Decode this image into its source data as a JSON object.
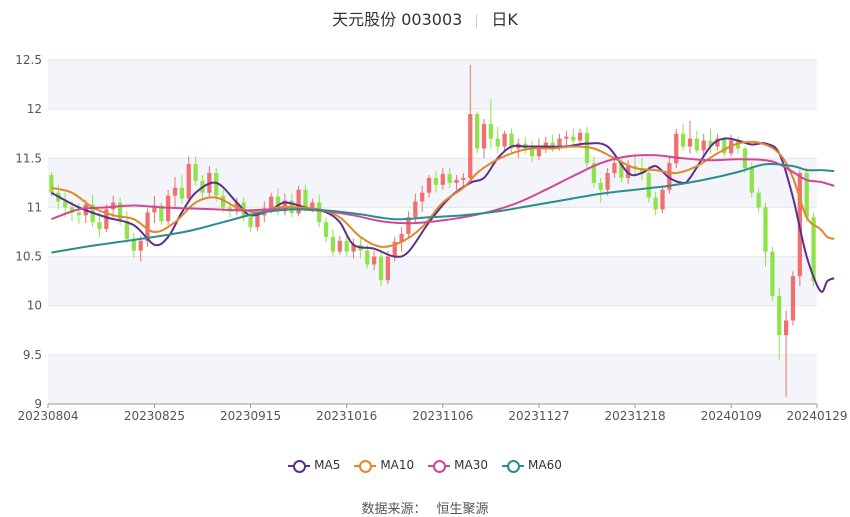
{
  "header": {
    "stock": "天元股份 003003",
    "period": "日K"
  },
  "source": {
    "label": "数据来源：",
    "name": "恒生聚源"
  },
  "colors": {
    "up": "#f06f6f",
    "down": "#8fe34a",
    "grid": "#e5e5e5",
    "band": "#f4f5fa"
  },
  "chart_data": {
    "type": "candlestick",
    "ylim": [
      9,
      12.5
    ],
    "yticks": [
      9,
      9.5,
      10,
      10.5,
      11,
      11.5,
      12,
      12.5
    ],
    "xtick_labels": [
      "20230804",
      "20230825",
      "20230915",
      "20231016",
      "20231106",
      "20231127",
      "20231218",
      "20240109",
      "20240129"
    ],
    "xtick_positions": [
      0,
      15,
      29,
      43,
      57,
      71,
      85,
      99,
      112
    ],
    "candles_ohlc": [
      [
        11.33,
        11.36,
        11.11,
        11.15
      ],
      [
        11.15,
        11.23,
        10.98,
        11.06
      ],
      [
        11.06,
        11.15,
        10.9,
        11.0
      ],
      [
        11.0,
        11.06,
        10.86,
        10.95
      ],
      [
        10.95,
        11.04,
        10.83,
        10.92
      ],
      [
        10.92,
        11.08,
        10.84,
        11.03
      ],
      [
        11.03,
        11.13,
        10.8,
        10.85
      ],
      [
        10.85,
        10.95,
        10.7,
        10.78
      ],
      [
        10.78,
        11.03,
        10.75,
        10.98
      ],
      [
        10.98,
        11.12,
        10.9,
        11.05
      ],
      [
        11.05,
        11.1,
        10.82,
        10.86
      ],
      [
        10.86,
        10.96,
        10.64,
        10.68
      ],
      [
        10.68,
        10.74,
        10.49,
        10.56
      ],
      [
        10.56,
        10.71,
        10.45,
        10.66
      ],
      [
        10.66,
        10.99,
        10.6,
        10.95
      ],
      [
        10.95,
        11.12,
        10.84,
        11.02
      ],
      [
        11.02,
        11.05,
        10.82,
        10.86
      ],
      [
        10.86,
        11.18,
        10.82,
        11.12
      ],
      [
        11.12,
        11.31,
        11.0,
        11.2
      ],
      [
        11.2,
        11.33,
        11.04,
        11.09
      ],
      [
        11.09,
        11.52,
        11.05,
        11.44
      ],
      [
        11.44,
        11.52,
        11.22,
        11.27
      ],
      [
        11.27,
        11.33,
        11.07,
        11.15
      ],
      [
        11.15,
        11.42,
        11.1,
        11.35
      ],
      [
        11.35,
        11.4,
        11.06,
        11.12
      ],
      [
        11.12,
        11.18,
        10.95,
        11.0
      ],
      [
        11.0,
        11.06,
        10.9,
        10.96
      ],
      [
        10.96,
        11.1,
        10.92,
        11.05
      ],
      [
        11.05,
        11.1,
        10.86,
        10.9
      ],
      [
        10.9,
        10.95,
        10.75,
        10.8
      ],
      [
        10.8,
        10.94,
        10.76,
        10.92
      ],
      [
        10.92,
        11.06,
        10.85,
        10.99
      ],
      [
        10.99,
        11.15,
        10.94,
        11.11
      ],
      [
        11.11,
        11.2,
        10.92,
        10.96
      ],
      [
        10.96,
        11.14,
        10.92,
        11.07
      ],
      [
        11.07,
        11.14,
        10.9,
        10.94
      ],
      [
        10.94,
        11.22,
        10.91,
        11.18
      ],
      [
        11.18,
        11.23,
        10.96,
        11.0
      ],
      [
        11.0,
        11.09,
        10.95,
        11.05
      ],
      [
        11.05,
        11.13,
        10.8,
        10.85
      ],
      [
        10.85,
        10.9,
        10.65,
        10.7
      ],
      [
        10.7,
        10.78,
        10.5,
        10.55
      ],
      [
        10.55,
        10.71,
        10.52,
        10.66
      ],
      [
        10.66,
        10.72,
        10.5,
        10.55
      ],
      [
        10.55,
        10.68,
        10.48,
        10.62
      ],
      [
        10.62,
        10.7,
        10.48,
        10.56
      ],
      [
        10.56,
        10.62,
        10.38,
        10.42
      ],
      [
        10.42,
        10.56,
        10.36,
        10.5
      ],
      [
        10.5,
        10.54,
        10.2,
        10.26
      ],
      [
        10.26,
        10.56,
        10.22,
        10.5
      ],
      [
        10.5,
        10.7,
        10.45,
        10.65
      ],
      [
        10.65,
        10.8,
        10.55,
        10.73
      ],
      [
        10.73,
        10.96,
        10.7,
        10.9
      ],
      [
        10.9,
        11.14,
        10.85,
        11.06
      ],
      [
        11.06,
        11.22,
        10.95,
        11.15
      ],
      [
        11.15,
        11.33,
        11.1,
        11.3
      ],
      [
        11.3,
        11.37,
        11.15,
        11.23
      ],
      [
        11.23,
        11.4,
        11.18,
        11.34
      ],
      [
        11.34,
        11.4,
        11.2,
        11.25
      ],
      [
        11.25,
        11.33,
        11.18,
        11.28
      ],
      [
        11.28,
        11.35,
        11.22,
        11.3
      ],
      [
        11.3,
        12.45,
        11.28,
        11.95
      ],
      [
        11.95,
        11.98,
        11.55,
        11.6
      ],
      [
        11.6,
        11.9,
        11.5,
        11.85
      ],
      [
        11.85,
        12.1,
        11.6,
        11.7
      ],
      [
        11.7,
        11.82,
        11.55,
        11.62
      ],
      [
        11.62,
        11.78,
        11.58,
        11.75
      ],
      [
        11.75,
        11.8,
        11.55,
        11.6
      ],
      [
        11.6,
        11.7,
        11.5,
        11.65
      ],
      [
        11.65,
        11.72,
        11.55,
        11.6
      ],
      [
        11.6,
        11.68,
        11.46,
        11.52
      ],
      [
        11.52,
        11.7,
        11.48,
        11.62
      ],
      [
        11.62,
        11.72,
        11.55,
        11.66
      ],
      [
        11.66,
        11.74,
        11.56,
        11.6
      ],
      [
        11.6,
        11.75,
        11.58,
        11.7
      ],
      [
        11.7,
        11.78,
        11.6,
        11.72
      ],
      [
        11.72,
        11.8,
        11.62,
        11.68
      ],
      [
        11.68,
        11.8,
        11.62,
        11.76
      ],
      [
        11.76,
        11.82,
        11.4,
        11.45
      ],
      [
        11.45,
        11.52,
        11.2,
        11.25
      ],
      [
        11.25,
        11.3,
        11.05,
        11.18
      ],
      [
        11.18,
        11.4,
        11.12,
        11.35
      ],
      [
        11.35,
        11.52,
        11.3,
        11.45
      ],
      [
        11.45,
        11.5,
        11.25,
        11.3
      ],
      [
        11.3,
        11.48,
        11.24,
        11.42
      ],
      [
        11.42,
        11.55,
        11.32,
        11.4
      ],
      [
        11.4,
        11.5,
        11.28,
        11.35
      ],
      [
        11.35,
        11.42,
        11.05,
        11.1
      ],
      [
        11.1,
        11.16,
        10.92,
        10.98
      ],
      [
        10.98,
        11.22,
        10.94,
        11.18
      ],
      [
        11.18,
        11.52,
        11.14,
        11.45
      ],
      [
        11.45,
        11.8,
        11.4,
        11.75
      ],
      [
        11.75,
        11.85,
        11.58,
        11.62
      ],
      [
        11.62,
        11.88,
        11.55,
        11.7
      ],
      [
        11.7,
        11.78,
        11.55,
        11.58
      ],
      [
        11.58,
        11.75,
        11.52,
        11.68
      ],
      [
        11.68,
        11.8,
        11.55,
        11.62
      ],
      [
        11.62,
        11.75,
        11.58,
        11.7
      ],
      [
        11.7,
        11.72,
        11.52,
        11.55
      ],
      [
        11.55,
        11.74,
        11.52,
        11.68
      ],
      [
        11.68,
        11.72,
        11.55,
        11.6
      ],
      [
        11.6,
        11.62,
        11.35,
        11.4
      ],
      [
        11.4,
        11.46,
        11.1,
        11.15
      ],
      [
        11.15,
        11.2,
        10.95,
        11.0
      ],
      [
        11.0,
        11.05,
        10.4,
        10.55
      ],
      [
        10.55,
        10.6,
        10.05,
        10.1
      ],
      [
        10.1,
        10.18,
        9.45,
        9.7
      ],
      [
        9.7,
        9.95,
        9.07,
        9.85
      ],
      [
        9.85,
        10.35,
        9.8,
        10.3
      ],
      [
        10.3,
        11.38,
        10.2,
        11.35
      ],
      [
        11.35,
        11.4,
        10.85,
        10.9
      ],
      [
        10.9,
        10.95,
        10.2,
        10.25
      ]
    ],
    "ma5": [
      [
        0,
        11.15
      ],
      [
        4,
        11.0
      ],
      [
        8,
        10.9
      ],
      [
        12,
        10.82
      ],
      [
        15,
        10.62
      ],
      [
        17,
        10.7
      ],
      [
        19,
        10.95
      ],
      [
        21,
        11.15
      ],
      [
        24,
        11.25
      ],
      [
        27,
        11.05
      ],
      [
        29,
        10.92
      ],
      [
        32,
        10.98
      ],
      [
        34,
        11.05
      ],
      [
        37,
        11.0
      ],
      [
        40,
        10.95
      ],
      [
        42,
        10.85
      ],
      [
        44,
        10.62
      ],
      [
        47,
        10.58
      ],
      [
        50,
        10.5
      ],
      [
        52,
        10.55
      ],
      [
        55,
        10.85
      ],
      [
        58,
        11.1
      ],
      [
        61,
        11.25
      ],
      [
        63,
        11.3
      ],
      [
        65,
        11.5
      ],
      [
        67,
        11.62
      ],
      [
        69,
        11.62
      ],
      [
        72,
        11.62
      ],
      [
        75,
        11.62
      ],
      [
        78,
        11.65
      ],
      [
        81,
        11.62
      ],
      [
        84,
        11.35
      ],
      [
        86,
        11.35
      ],
      [
        88,
        11.42
      ],
      [
        90,
        11.3
      ],
      [
        92,
        11.25
      ],
      [
        93,
        11.3
      ],
      [
        96,
        11.62
      ],
      [
        98,
        11.7
      ],
      [
        100,
        11.68
      ],
      [
        102,
        11.64
      ],
      [
        104,
        11.65
      ],
      [
        106,
        11.55
      ],
      [
        108,
        11.1
      ],
      [
        110,
        10.5
      ],
      [
        112,
        10.15
      ],
      [
        113,
        10.25
      ],
      [
        114,
        10.28
      ]
    ],
    "ma10": [
      [
        0,
        11.2
      ],
      [
        3,
        11.15
      ],
      [
        6,
        11.0
      ],
      [
        9,
        10.92
      ],
      [
        12,
        10.88
      ],
      [
        15,
        10.75
      ],
      [
        18,
        10.85
      ],
      [
        21,
        11.05
      ],
      [
        24,
        11.1
      ],
      [
        27,
        11.0
      ],
      [
        30,
        10.95
      ],
      [
        33,
        11.0
      ],
      [
        36,
        11.0
      ],
      [
        39,
        10.98
      ],
      [
        42,
        10.9
      ],
      [
        45,
        10.7
      ],
      [
        48,
        10.6
      ],
      [
        51,
        10.65
      ],
      [
        54,
        10.8
      ],
      [
        57,
        11.05
      ],
      [
        60,
        11.2
      ],
      [
        62,
        11.35
      ],
      [
        64,
        11.45
      ],
      [
        67,
        11.55
      ],
      [
        70,
        11.6
      ],
      [
        73,
        11.6
      ],
      [
        76,
        11.62
      ],
      [
        79,
        11.6
      ],
      [
        82,
        11.5
      ],
      [
        85,
        11.4
      ],
      [
        88,
        11.38
      ],
      [
        91,
        11.35
      ],
      [
        94,
        11.42
      ],
      [
        97,
        11.55
      ],
      [
        100,
        11.65
      ],
      [
        103,
        11.66
      ],
      [
        106,
        11.55
      ],
      [
        108,
        11.3
      ],
      [
        110,
        10.9
      ],
      [
        112,
        10.78
      ],
      [
        113,
        10.7
      ],
      [
        114,
        10.68
      ]
    ],
    "ma30": [
      [
        0,
        10.88
      ],
      [
        4,
        10.98
      ],
      [
        8,
        11.0
      ],
      [
        12,
        11.02
      ],
      [
        16,
        11.0
      ],
      [
        20,
        10.99
      ],
      [
        24,
        10.98
      ],
      [
        28,
        10.97
      ],
      [
        32,
        10.98
      ],
      [
        36,
        10.98
      ],
      [
        40,
        10.96
      ],
      [
        44,
        10.92
      ],
      [
        48,
        10.86
      ],
      [
        52,
        10.84
      ],
      [
        56,
        10.86
      ],
      [
        60,
        10.9
      ],
      [
        64,
        10.96
      ],
      [
        68,
        11.05
      ],
      [
        72,
        11.18
      ],
      [
        76,
        11.32
      ],
      [
        80,
        11.45
      ],
      [
        84,
        11.52
      ],
      [
        88,
        11.53
      ],
      [
        92,
        11.5
      ],
      [
        96,
        11.48
      ],
      [
        100,
        11.49
      ],
      [
        104,
        11.48
      ],
      [
        106,
        11.44
      ],
      [
        108,
        11.36
      ],
      [
        110,
        11.28
      ],
      [
        112,
        11.26
      ],
      [
        114,
        11.22
      ]
    ],
    "ma60": [
      [
        0,
        10.54
      ],
      [
        5,
        10.6
      ],
      [
        10,
        10.65
      ],
      [
        15,
        10.7
      ],
      [
        20,
        10.76
      ],
      [
        25,
        10.85
      ],
      [
        30,
        10.94
      ],
      [
        35,
        10.98
      ],
      [
        40,
        10.97
      ],
      [
        45,
        10.93
      ],
      [
        50,
        10.88
      ],
      [
        55,
        10.9
      ],
      [
        60,
        10.92
      ],
      [
        65,
        10.96
      ],
      [
        70,
        11.02
      ],
      [
        75,
        11.08
      ],
      [
        80,
        11.14
      ],
      [
        85,
        11.18
      ],
      [
        90,
        11.22
      ],
      [
        95,
        11.28
      ],
      [
        100,
        11.36
      ],
      [
        104,
        11.44
      ],
      [
        108,
        11.42
      ],
      [
        110,
        11.38
      ],
      [
        112,
        11.38
      ],
      [
        114,
        11.37
      ]
    ],
    "legend": [
      "MA5",
      "MA10",
      "MA30",
      "MA60"
    ],
    "legend_colors": [
      "#5d2e8e",
      "#e0882b",
      "#d04798",
      "#2e8c8c"
    ],
    "legend_position": "bottom"
  }
}
